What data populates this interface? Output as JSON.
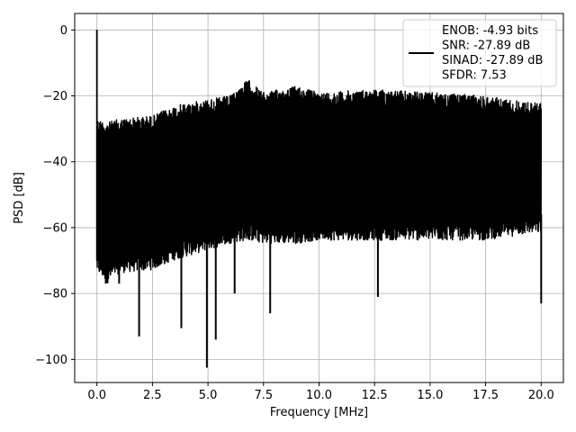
{
  "chart_data": {
    "type": "line",
    "xlabel": "Frequency [MHz]",
    "ylabel": "PSD [dB]",
    "xlim": [
      -1.0,
      21.0
    ],
    "ylim": [
      -107,
      5
    ],
    "x_ticks": [
      0,
      2.5,
      5,
      7.5,
      10,
      12.5,
      15,
      17.5,
      20
    ],
    "x_tick_labels": [
      "0.0",
      "2.5",
      "5.0",
      "7.5",
      "10.0",
      "12.5",
      "15.0",
      "17.5",
      "20.0"
    ],
    "y_ticks": [
      0,
      -20,
      -40,
      -60,
      -80,
      -100
    ],
    "y_tick_labels": [
      "0",
      "−20",
      "−40",
      "−60",
      "−80",
      "−100"
    ],
    "grid": true,
    "legend_position": "top-right",
    "series": [
      {
        "color": "#000000",
        "peak": {
          "x": 0.0,
          "y": 0.0
        },
        "envelope_x": [
          0.0,
          0.5,
          1.0,
          2.5,
          3.5,
          5.0,
          6.0,
          6.8,
          7.5,
          9.0,
          10.0,
          12.5,
          15.0,
          17.5,
          19.5,
          20.0
        ],
        "envelope_upper": [
          -27,
          -28,
          -27,
          -26,
          -23,
          -21,
          -20,
          -15,
          -19,
          -17,
          -19,
          -18,
          -19,
          -20,
          -22,
          -22
        ],
        "envelope_lower": [
          -72,
          -75,
          -72,
          -71,
          -68,
          -65,
          -63,
          -62,
          -63,
          -63,
          -62,
          -62,
          -62,
          -62,
          -60,
          -60
        ],
        "dips": [
          {
            "x": 1.9,
            "y": -93
          },
          {
            "x": 3.8,
            "y": -90.5
          },
          {
            "x": 4.95,
            "y": -102.5
          },
          {
            "x": 5.35,
            "y": -94
          },
          {
            "x": 7.8,
            "y": -86
          },
          {
            "x": 6.2,
            "y": -80
          },
          {
            "x": 12.65,
            "y": -81
          },
          {
            "x": 20.0,
            "y": -83
          },
          {
            "x": 0.4,
            "y": -77
          },
          {
            "x": 1.0,
            "y": -77
          }
        ]
      }
    ],
    "legend": {
      "lines": [
        "ENOB: -4.93 bits",
        "SNR: -27.89 dB",
        "SINAD: -27.89 dB",
        "SFDR: 7.53"
      ]
    }
  }
}
